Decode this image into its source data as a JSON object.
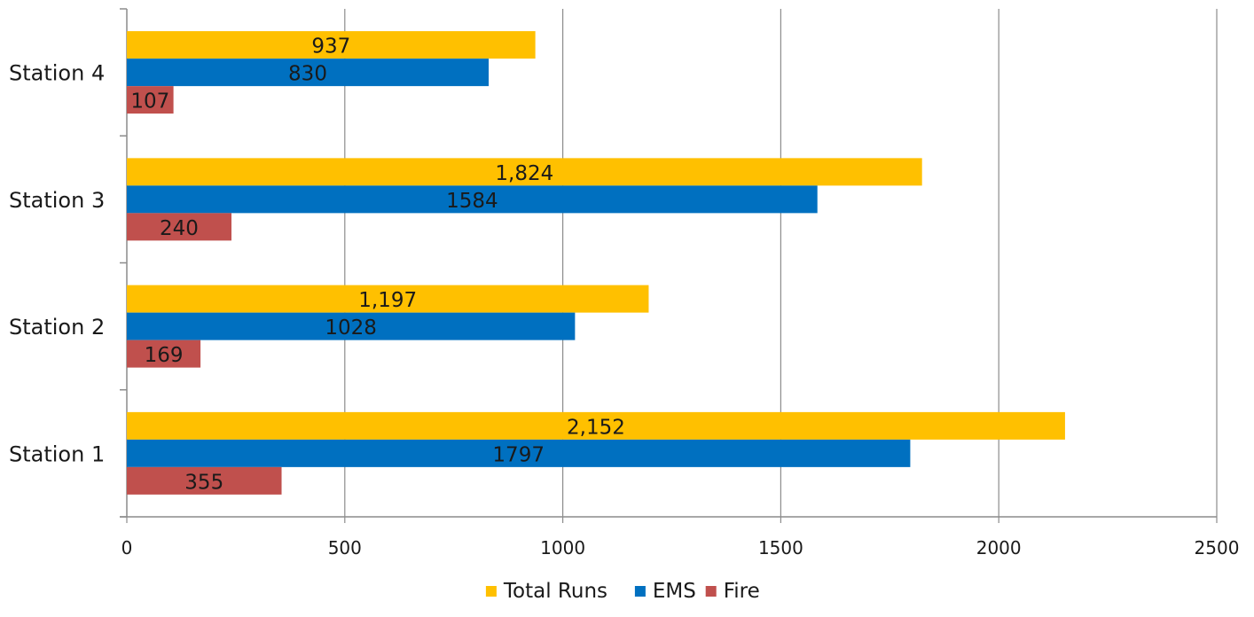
{
  "chart_data": {
    "type": "bar",
    "orientation": "horizontal",
    "categories": [
      "Station 1",
      "Station 2",
      "Station 3",
      "Station 4"
    ],
    "series": [
      {
        "name": "Fire",
        "color": "#C0504D",
        "values": [
          355,
          169,
          240,
          107
        ],
        "labels": [
          "355",
          "169",
          "240",
          "107"
        ]
      },
      {
        "name": "EMS",
        "color": "#0070C0",
        "values": [
          1797,
          1028,
          1584,
          830
        ],
        "labels": [
          "1797",
          "1028",
          "1584",
          "830"
        ]
      },
      {
        "name": "Total Runs",
        "color": "#FFC000",
        "values": [
          2152,
          1197,
          1824,
          937
        ],
        "labels": [
          "2,152",
          "1,197",
          "1,824",
          "937"
        ]
      }
    ],
    "legend_order": [
      "Total Runs",
      "EMS",
      "Fire"
    ],
    "xlim": [
      0,
      2500
    ],
    "xticks": [
      0,
      500,
      1000,
      1500,
      2000,
      2500
    ],
    "xtick_labels": [
      "0",
      "500",
      "1000",
      "1500",
      "2000",
      "2500"
    ],
    "grid": "vertical",
    "legend_position": "bottom",
    "title": "",
    "xlabel": "",
    "ylabel": ""
  }
}
